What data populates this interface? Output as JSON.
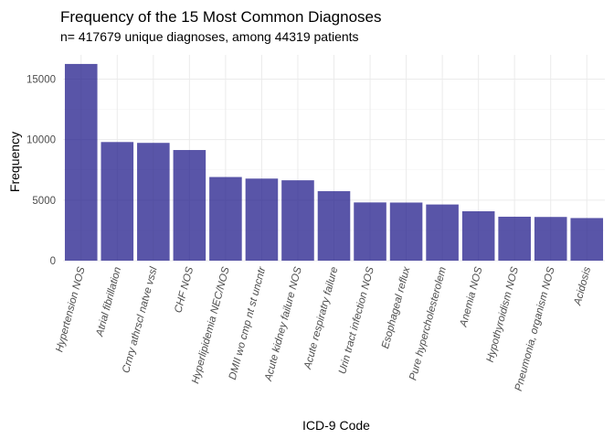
{
  "chart_data": {
    "type": "bar",
    "title": "Frequency of the 15 Most Common Diagnoses",
    "subtitle": "n= 417679  unique diagnoses, among 44319 patients",
    "xlabel": "ICD-9 Code",
    "ylabel": "Frequency",
    "categories": [
      "Hypertension NOS",
      "Atrial fibrillation",
      "Crnry athrscl natve vssl",
      "CHF NOS",
      "Hyperlipidemia NEC/NOS",
      "DMII wo cmp nt st uncntr",
      "Acute kidney failure NOS",
      "Acute respiratry failure",
      "Urin tract infection NOS",
      "Esophageal reflux",
      "Pure hypercholesterolem",
      "Anemia NOS",
      "Hypothyroidism NOS",
      "Pneumonia, organism NOS",
      "Acidosis"
    ],
    "values": [
      16250,
      9800,
      9730,
      9140,
      6910,
      6780,
      6640,
      5740,
      4810,
      4800,
      4640,
      4080,
      3630,
      3610,
      3520
    ],
    "ylim": [
      0,
      17000
    ],
    "yticks": [
      0,
      5000,
      10000,
      15000
    ],
    "ytick_labels": [
      "0",
      "5000",
      "10000",
      "15000"
    ],
    "grid": true,
    "legend": "none",
    "bar_color": "#1f1a8a",
    "bar_opacity": 0.74
  }
}
